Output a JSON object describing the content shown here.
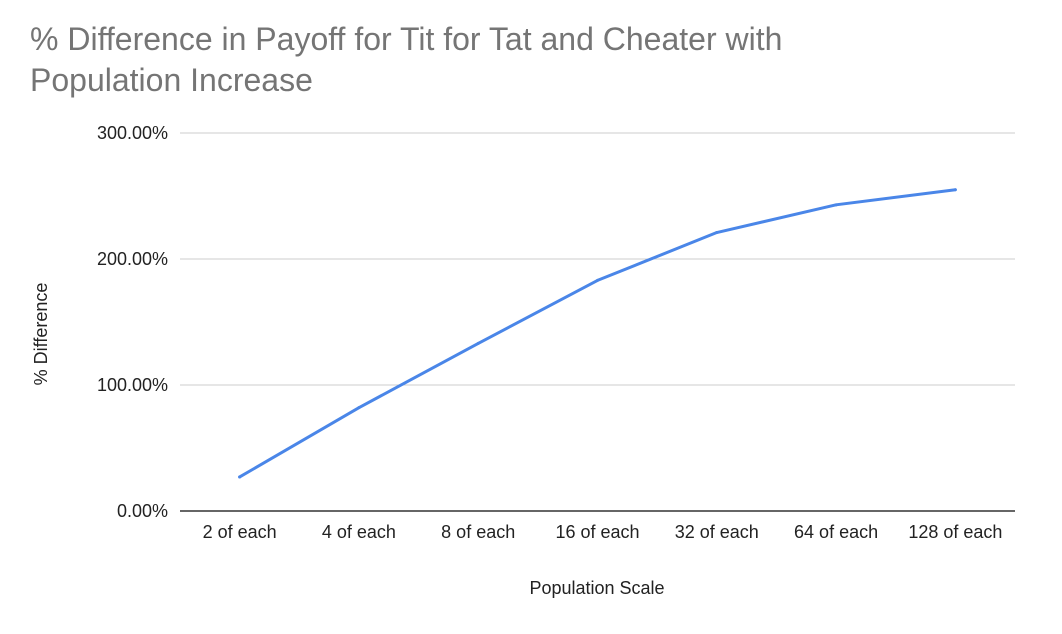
{
  "chart_data": {
    "type": "line",
    "title_lines": [
      "% Difference in Payoff for Tit for Tat and Cheater with",
      "Population Increase"
    ],
    "xlabel": "Population Scale",
    "ylabel": "% Difference",
    "categories": [
      "2 of each",
      "4 of each",
      "8 of each",
      "16 of each",
      "32 of each",
      "64 of each",
      "128 of each"
    ],
    "y_ticks": [
      "0.00%",
      "100.00%",
      "200.00%",
      "300.00%"
    ],
    "ylim": [
      0,
      300
    ],
    "grid": true,
    "legend": "none",
    "series": [
      {
        "values": [
          27,
          82,
          133,
          183,
          221,
          243,
          255
        ],
        "color": "#4a86e8"
      }
    ]
  }
}
